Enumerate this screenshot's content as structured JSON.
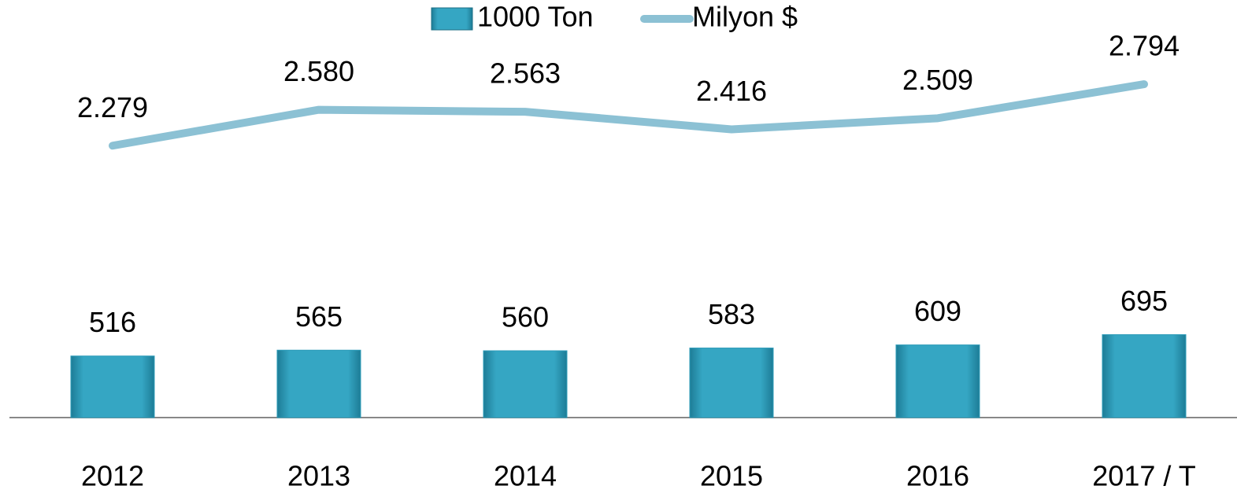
{
  "chart_data": {
    "type": "bar",
    "categories": [
      "2012",
      "2013",
      "2014",
      "2015",
      "2016",
      "2017 / T"
    ],
    "series": [
      {
        "name": "1000 Ton",
        "type": "bar",
        "color": "#2e9cb9",
        "values": [
          516,
          565,
          560,
          583,
          609,
          695
        ]
      },
      {
        "name": "Milyon $",
        "type": "line",
        "color": "#8cc1d4",
        "values": [
          2279,
          2580,
          2563,
          2416,
          2509,
          2794
        ],
        "value_labels": [
          "2.279",
          "2.580",
          "2.563",
          "2.416",
          "2.509",
          "2.794"
        ]
      }
    ],
    "ylim": [
      0,
      3500
    ]
  }
}
